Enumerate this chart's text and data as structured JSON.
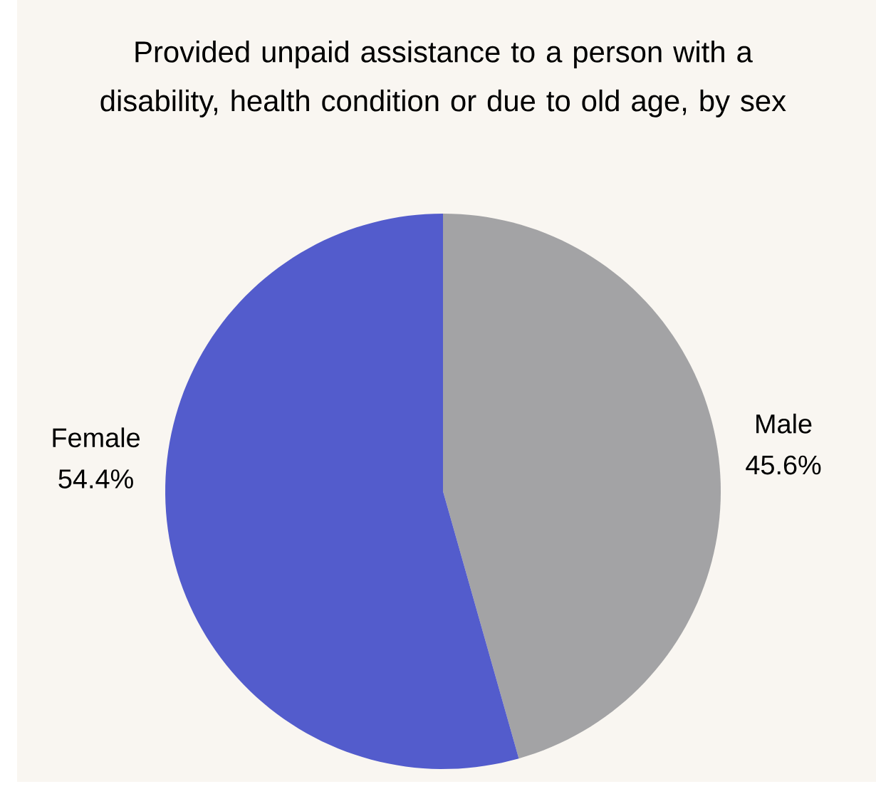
{
  "chart_data": {
    "type": "pie",
    "title": "Provided unpaid assistance to a person with a disability, health condition or due to old age, by sex",
    "categories": [
      "Male",
      "Female"
    ],
    "values": [
      45.6,
      54.4
    ],
    "value_labels": [
      "45.6%",
      "54.4%"
    ],
    "colors": [
      "#a3a3a5",
      "#535ccc"
    ]
  }
}
